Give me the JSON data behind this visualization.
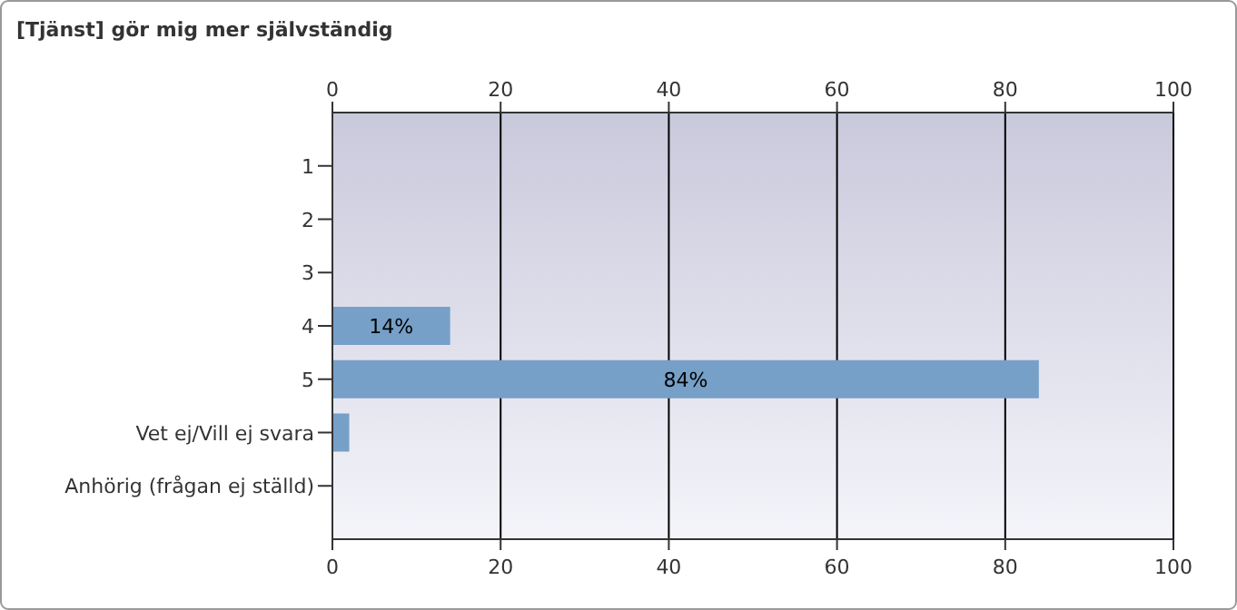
{
  "chart_data": {
    "type": "bar",
    "orientation": "horizontal",
    "title": "[Tjänst] gör mig mer självständig",
    "categories": [
      "1",
      "2",
      "3",
      "4",
      "5",
      "Vet ej/Vill ej svara",
      "Anhörig (frågan ej ställd)"
    ],
    "values": [
      0,
      0,
      0,
      14,
      84,
      2,
      0
    ],
    "value_labels": [
      null,
      null,
      null,
      "14%",
      "84%",
      null,
      null
    ],
    "color": "#76a0c8",
    "xlim": [
      0,
      100
    ],
    "xticks": [
      0,
      20,
      40,
      60,
      80,
      100
    ],
    "x2lim": [
      0,
      100
    ],
    "x2ticks": [
      0,
      20,
      40,
      60,
      80,
      100
    ],
    "grid": "x"
  }
}
